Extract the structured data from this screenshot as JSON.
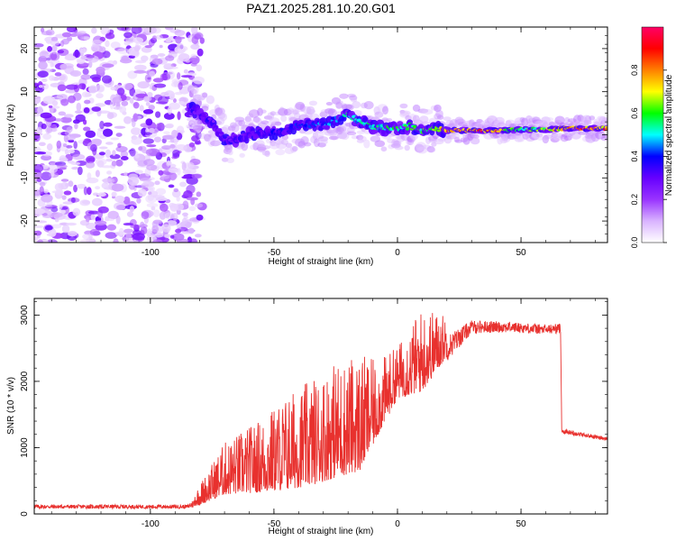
{
  "title": "PAZ1.2025.281.10.20.G01",
  "chart_data": [
    {
      "type": "heatmap",
      "xlabel": "Height of straight line (km)",
      "ylabel": "Frequency (Hz)",
      "xlim": [
        -147,
        85
      ],
      "ylim": [
        -25,
        25
      ],
      "xticks": [
        -100,
        -50,
        0,
        50
      ],
      "yticks": [
        -20,
        -10,
        0,
        10,
        20
      ],
      "xtick_labels": [
        "-100",
        "-50",
        "0",
        "50"
      ],
      "ytick_labels": [
        "-20",
        "-10",
        "0",
        "10",
        "20"
      ],
      "colorbar": {
        "label": "Normalized spectral amplitude",
        "range": [
          0,
          1
        ],
        "ticks": [
          "0.0",
          "0.2",
          "0.4",
          "0.6",
          "0.8"
        ],
        "tick_values": [
          0,
          0.2,
          0.4,
          0.6,
          0.8
        ],
        "colors": [
          "#ffffff",
          "#d9b3ff",
          "#9933ff",
          "#6600ff",
          "#0000ff",
          "#00ffff",
          "#00ff00",
          "#ffff00",
          "#ff8000",
          "#ff0000",
          "#ff0066"
        ]
      },
      "noise_region": {
        "x": [
          -147,
          -82
        ],
        "amplitude": "low"
      },
      "ridge": [
        {
          "x": -84,
          "freq": 6,
          "amp": 0.3
        },
        {
          "x": -80,
          "freq": 5,
          "amp": 0.35
        },
        {
          "x": -75,
          "freq": 3,
          "amp": 0.3
        },
        {
          "x": -70,
          "freq": -1,
          "amp": 0.28
        },
        {
          "x": -65,
          "freq": -1,
          "amp": 0.32
        },
        {
          "x": -60,
          "freq": 0,
          "amp": 0.35
        },
        {
          "x": -55,
          "freq": 0.5,
          "amp": 0.35
        },
        {
          "x": -50,
          "freq": 0.5,
          "amp": 0.38
        },
        {
          "x": -45,
          "freq": 1,
          "amp": 0.4
        },
        {
          "x": -40,
          "freq": 2,
          "amp": 0.42
        },
        {
          "x": -35,
          "freq": 2.5,
          "amp": 0.45
        },
        {
          "x": -30,
          "freq": 2.5,
          "amp": 0.48
        },
        {
          "x": -25,
          "freq": 3.5,
          "amp": 0.5
        },
        {
          "x": -20,
          "freq": 4.5,
          "amp": 0.55
        },
        {
          "x": -15,
          "freq": 3,
          "amp": 0.55
        },
        {
          "x": -10,
          "freq": 2,
          "amp": 0.6
        },
        {
          "x": -5,
          "freq": 1.5,
          "amp": 0.6
        },
        {
          "x": 0,
          "freq": 1.5,
          "amp": 0.6
        },
        {
          "x": 5,
          "freq": 2,
          "amp": 0.62
        },
        {
          "x": 10,
          "freq": 1,
          "amp": 0.65
        },
        {
          "x": 15,
          "freq": 1.5,
          "amp": 0.7
        },
        {
          "x": 20,
          "freq": 1,
          "amp": 0.9
        },
        {
          "x": 30,
          "freq": 1,
          "amp": 0.92
        },
        {
          "x": 40,
          "freq": 1,
          "amp": 0.9
        },
        {
          "x": 50,
          "freq": 1.2,
          "amp": 0.6
        },
        {
          "x": 60,
          "freq": 1.2,
          "amp": 0.7
        },
        {
          "x": 70,
          "freq": 1.5,
          "amp": 0.85
        },
        {
          "x": 80,
          "freq": 1.5,
          "amp": 0.9
        },
        {
          "x": 85,
          "freq": 1.5,
          "amp": 0.9
        }
      ]
    },
    {
      "type": "line",
      "xlabel": "Height of straight line (km)",
      "ylabel": "SNR (10 * v/v)",
      "xlim": [
        -147,
        85
      ],
      "ylim": [
        0,
        3250
      ],
      "xticks": [
        -100,
        -50,
        0,
        50
      ],
      "yticks": [
        0,
        1000,
        2000,
        3000
      ],
      "xtick_labels": [
        "-100",
        "-50",
        "0",
        "50"
      ],
      "ytick_labels": [
        "0",
        "1000",
        "2000",
        "3000"
      ],
      "series": [
        {
          "color": "#e8312e",
          "envelope": [
            {
              "x": -147,
              "base": 110,
              "amp": 60
            },
            {
              "x": -85,
              "base": 110,
              "amp": 60
            },
            {
              "x": -80,
              "base": 200,
              "amp": 200
            },
            {
              "x": -70,
              "base": 450,
              "amp": 500
            },
            {
              "x": -55,
              "base": 550,
              "amp": 700
            },
            {
              "x": -45,
              "base": 650,
              "amp": 900
            },
            {
              "x": -35,
              "base": 750,
              "amp": 1000
            },
            {
              "x": -25,
              "base": 900,
              "amp": 1100
            },
            {
              "x": -15,
              "base": 1000,
              "amp": 1100
            },
            {
              "x": -8,
              "base": 1400,
              "amp": 700
            },
            {
              "x": 0,
              "base": 1900,
              "amp": 500
            },
            {
              "x": 10,
              "base": 2100,
              "amp": 800
            },
            {
              "x": 20,
              "base": 2500,
              "amp": 400
            },
            {
              "x": 30,
              "base": 2820,
              "amp": 200
            },
            {
              "x": 45,
              "base": 2820,
              "amp": 160
            },
            {
              "x": 60,
              "base": 2780,
              "amp": 150
            },
            {
              "x": 66,
              "base": 2800,
              "amp": 150
            },
            {
              "x": 66.5,
              "base": 1250,
              "amp": 70
            },
            {
              "x": 85,
              "base": 1130,
              "amp": 60
            }
          ]
        }
      ]
    }
  ]
}
